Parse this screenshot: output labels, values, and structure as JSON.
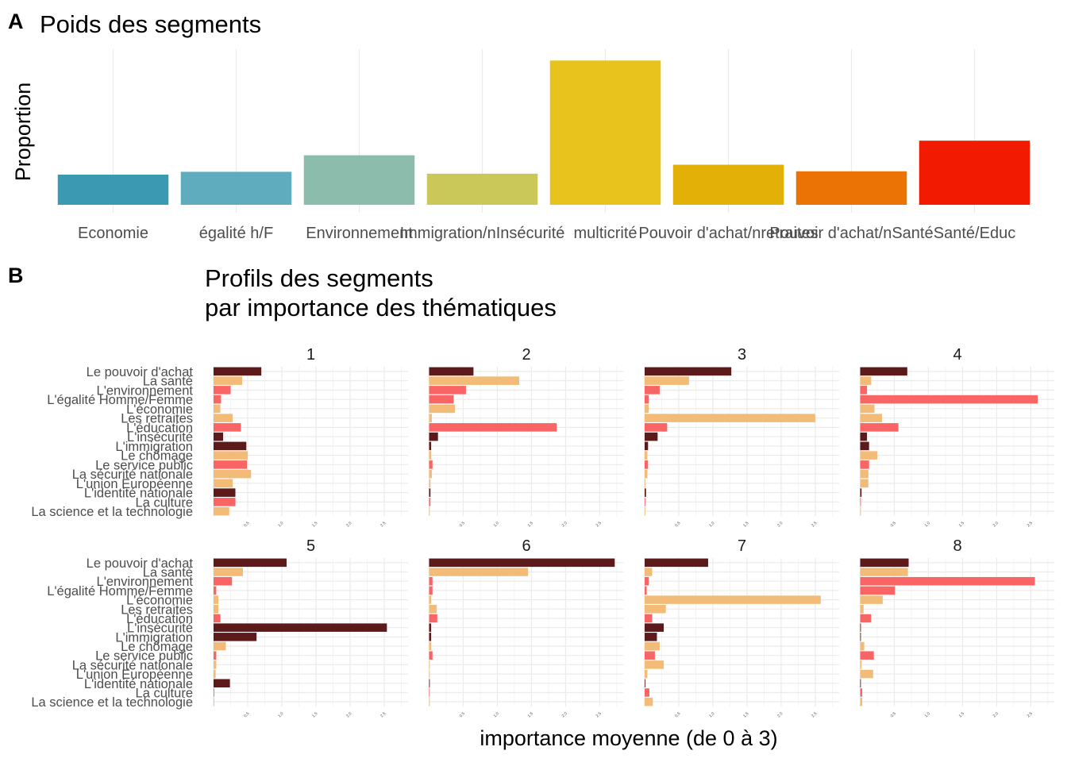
{
  "panel_a": {
    "letter": "A",
    "title": "Poids des segments"
  },
  "panel_b": {
    "letter": "B",
    "title_line1": "Profils des segments",
    "title_line2": "par importance des thématiques"
  },
  "chart_data": [
    {
      "type": "bar",
      "title": "Poids des segments",
      "xlabel": "",
      "ylabel": "Proportion",
      "categories": [
        "Economie",
        "égalité h/F",
        "Environnement",
        "Immigration/nInsécurité",
        "multicrité",
        "Pouvoir d'achat/nretraites",
        "Pouvoir d'achat/nSanté",
        "Santé/Educ"
      ],
      "values": [
        0.064,
        0.07,
        0.105,
        0.066,
        0.306,
        0.085,
        0.071,
        0.136
      ],
      "colors": [
        "#3b9ab2",
        "#5eacbd",
        "#8bbcac",
        "#c9c858",
        "#e8c31e",
        "#e2b007",
        "#eb7305",
        "#f21a00"
      ],
      "ylim": [
        0,
        0.33
      ],
      "grid": true
    },
    {
      "type": "bar",
      "orientation": "horizontal",
      "xlabel": "importance moyenne (de 0 à 3)",
      "xlim": [
        0,
        2.85
      ],
      "xticks": [
        0.5,
        1.0,
        1.5,
        2.0,
        2.5
      ],
      "xtick_labels": [
        "0.5",
        "1.0",
        "1.5",
        "2.0",
        "2.5"
      ],
      "categories": [
        "Le pouvoir d'achat",
        "La santé",
        "L'environnement",
        "L'égalité Homme/Femme",
        "L'économie",
        "Les retraites",
        "L'éducation",
        "L'insécurité",
        "L'immigration",
        "Le chômage",
        "Le service public",
        "La sécurité nationale",
        "L'union Européenne",
        "L'identité nationale",
        "La culture",
        "La science et la technologie"
      ],
      "bar_colors": [
        "#5c1a1a",
        "#f2bc78",
        "#f96464",
        "#f96464",
        "#f2bc78",
        "#f2bc78",
        "#f96464",
        "#5c1a1a",
        "#5c1a1a",
        "#f2bc78",
        "#f96464",
        "#f2bc78",
        "#f2bc78",
        "#5c1a1a",
        "#f96464",
        "#f2bc78"
      ],
      "facets": [
        {
          "label": "1",
          "values": [
            0.7,
            0.42,
            0.25,
            0.11,
            0.1,
            0.28,
            0.4,
            0.14,
            0.48,
            0.5,
            0.49,
            0.55,
            0.28,
            0.32,
            0.32,
            0.23
          ]
        },
        {
          "label": "2",
          "values": [
            0.65,
            1.32,
            0.54,
            0.36,
            0.38,
            0.04,
            1.87,
            0.13,
            0.03,
            0.03,
            0.05,
            0.04,
            0.02,
            0.02,
            0.02,
            0.01
          ]
        },
        {
          "label": "3",
          "values": [
            1.27,
            0.65,
            0.22,
            0.06,
            0.06,
            2.5,
            0.33,
            0.19,
            0.05,
            0.04,
            0.05,
            0.04,
            0.01,
            0.02,
            0.01,
            0.01
          ]
        },
        {
          "label": "4",
          "values": [
            0.69,
            0.16,
            0.1,
            2.6,
            0.21,
            0.32,
            0.56,
            0.1,
            0.13,
            0.25,
            0.13,
            0.12,
            0.12,
            0.02,
            0.01,
            0.01
          ]
        },
        {
          "label": "5",
          "values": [
            1.07,
            0.43,
            0.27,
            0.04,
            0.07,
            0.07,
            0.1,
            2.54,
            0.63,
            0.18,
            0.04,
            0.04,
            0.03,
            0.24,
            0.01,
            0.01
          ]
        },
        {
          "label": "6",
          "values": [
            2.72,
            1.45,
            0.05,
            0.05,
            0.03,
            0.11,
            0.12,
            0.03,
            0.03,
            0.03,
            0.05,
            0.01,
            0.01,
            0.01,
            0.01,
            0.01
          ]
        },
        {
          "label": "7",
          "values": [
            0.93,
            0.11,
            0.06,
            0.03,
            2.58,
            0.31,
            0.11,
            0.28,
            0.18,
            0.22,
            0.15,
            0.28,
            0.04,
            0.01,
            0.07,
            0.12
          ]
        },
        {
          "label": "8",
          "values": [
            0.71,
            0.7,
            2.56,
            0.51,
            0.33,
            0.05,
            0.16,
            0.01,
            0.01,
            0.06,
            0.2,
            0.02,
            0.19,
            0.01,
            0.03,
            0.03
          ]
        }
      ]
    }
  ]
}
